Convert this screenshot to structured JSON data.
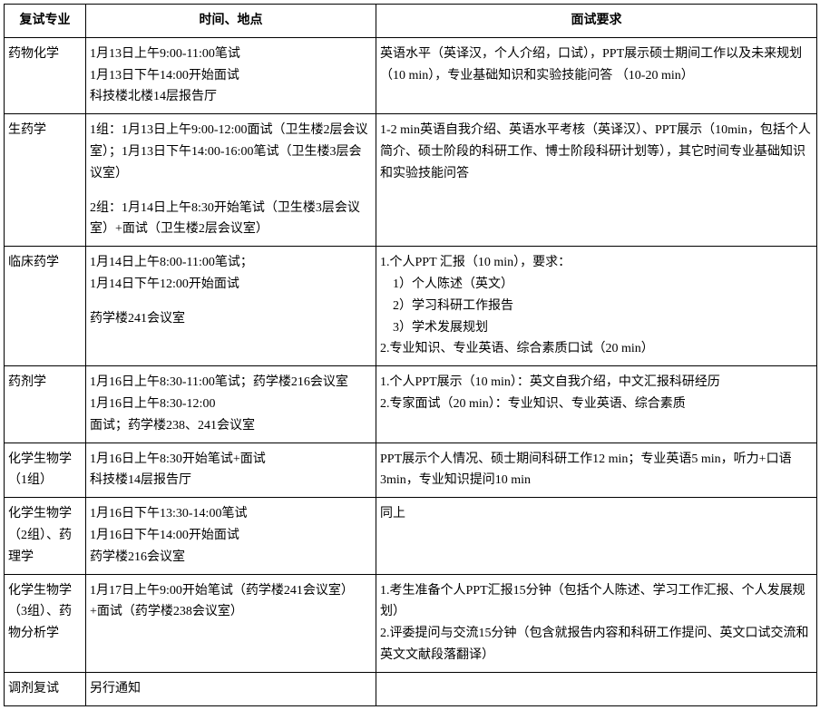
{
  "header": {
    "col1": "复试专业",
    "col2": "时间、地点",
    "col3": "面试要求"
  },
  "rows": [
    {
      "major": "药物化学",
      "schedule": [
        "1月13日上午9:00-11:00笔试",
        "1月13日下午14:00开始面试",
        "科技楼北楼14层报告厅"
      ],
      "req": [
        "英语水平（英译汉，个人介绍，口试），PPT展示硕士期间工作以及未来规划（10 min），专业基础知识和实验技能问答 （10-20 min）"
      ]
    },
    {
      "major": "生药学",
      "schedule": [
        "1组：1月13日上午9:00-12:00面试（卫生楼2层会议室）；1月13日下午14:00-16:00笔试（卫生楼3层会议室）",
        "",
        "2组：1月14日上午8:30开始笔试（卫生楼3层会议室）+面试（卫生楼2层会议室）"
      ],
      "req": [
        "1-2 min英语自我介绍、英语水平考核（英译汉）、PPT展示（10min，包括个人简介、硕士阶段的科研工作、博士阶段科研计划等），其它时间专业基础知识和实验技能问答"
      ]
    },
    {
      "major": "临床药学",
      "schedule": [
        "1月14日上午8:00-11:00笔试；",
        "1月14日下午12:00开始面试",
        "",
        "药学楼241会议室"
      ],
      "req": [
        "1.个人PPT 汇报（10 min），要求：",
        "　1）个人陈述（英文）",
        "　2）学习科研工作报告",
        "　3）学术发展规划",
        "2.专业知识、专业英语、综合素质口试（20 min）"
      ]
    },
    {
      "major": "药剂学",
      "schedule": [
        "1月16日上午8:30-11:00笔试；药学楼216会议室",
        "1月16日上午8:30-12:00",
        "面试；药学楼238、241会议室"
      ],
      "req": [
        "1.个人PPT展示（10 min）：英文自我介绍，中文汇报科研经历",
        "2.专家面试（20 min）：专业知识、专业英语、综合素质"
      ]
    },
    {
      "major": "化学生物学（1组）",
      "schedule": [
        "1月16日上午8:30开始笔试+面试",
        "科技楼14层报告厅"
      ],
      "req": [
        "PPT展示个人情况、硕士期间科研工作12 min；专业英语5 min，听力+口语3min，专业知识提问10 min"
      ]
    },
    {
      "major": "化学生物学（2组）、药理学",
      "schedule": [
        "1月16日下午13:30-14:00笔试",
        "1月16日下午14:00开始面试",
        "药学楼216会议室"
      ],
      "req": [
        "同上"
      ]
    },
    {
      "major": "化学生物学（3组）、药物分析学",
      "schedule": [
        "1月17日上午9:00开始笔试（药学楼241会议室）+面试（药学楼238会议室）"
      ],
      "req": [
        "1.考生准备个人PPT汇报15分钟（包括个人陈述、学习工作汇报、个人发展规划）",
        "2.评委提问与交流15分钟（包含就报告内容和科研工作提问、英文口试交流和英文文献段落翻译）"
      ]
    },
    {
      "major": "调剂复试",
      "schedule": [
        "另行通知"
      ],
      "req": [
        ""
      ]
    }
  ]
}
